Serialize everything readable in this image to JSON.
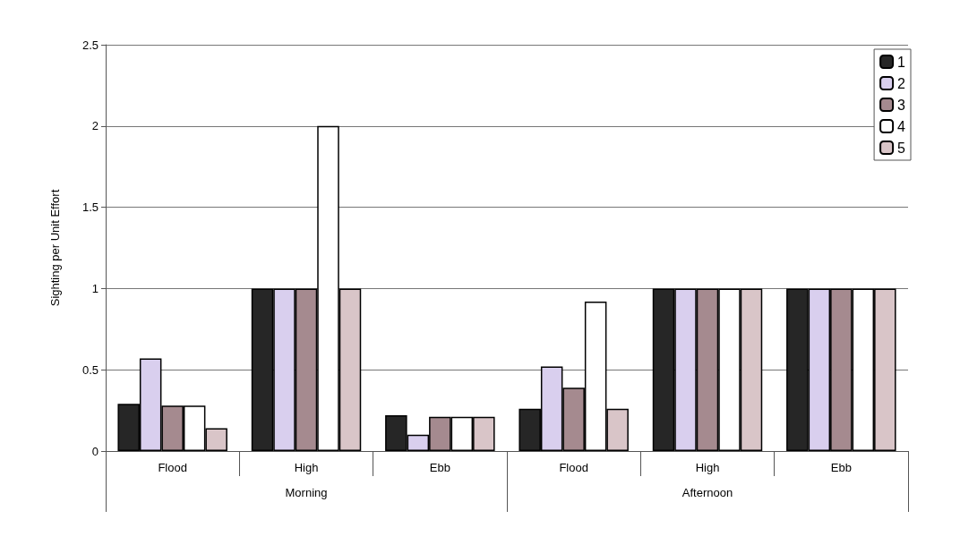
{
  "chart_data": {
    "type": "bar",
    "ylabel": "Sighting per Unit Effort",
    "categories": [
      "Flood",
      "High",
      "Ebb",
      "Flood",
      "High",
      "Ebb"
    ],
    "annotations": [
      "Morning",
      "Afternoon"
    ],
    "series": [
      {
        "name": "1",
        "color": "#262626",
        "values": [
          0.29,
          1,
          0.22,
          0.26,
          1,
          1
        ]
      },
      {
        "name": "2",
        "color": "#d9cfee",
        "values": [
          0.57,
          1,
          0.1,
          0.52,
          1,
          1
        ]
      },
      {
        "name": "3",
        "color": "#a58a8f",
        "values": [
          0.28,
          1,
          0.21,
          0.39,
          1,
          1
        ]
      },
      {
        "name": "4",
        "color": "#ffffff",
        "values": [
          0.28,
          2,
          0.21,
          0.92,
          1,
          1
        ]
      },
      {
        "name": "5",
        "color": "#d9c5c8",
        "values": [
          0.14,
          1,
          0.21,
          0.26,
          1,
          1
        ]
      }
    ],
    "ylim": [
      0,
      2.5
    ],
    "yticks": [
      0,
      0.5,
      1,
      1.5,
      2,
      2.5
    ],
    "grid": "y",
    "legend": "top right"
  }
}
